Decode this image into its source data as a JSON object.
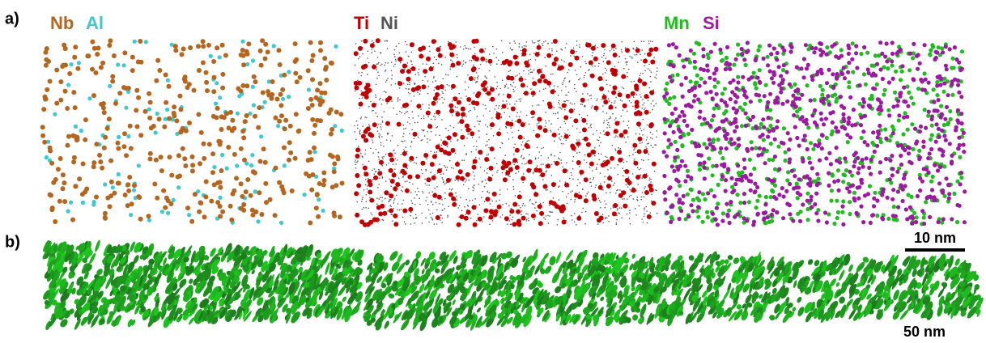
{
  "panel_a": {
    "label": "a)",
    "maps": [
      {
        "elements": [
          "Nb",
          "Al"
        ]
      },
      {
        "elements": [
          "Ti",
          "Ni"
        ]
      },
      {
        "elements": [
          "Mn",
          "Si"
        ]
      }
    ],
    "scale_bar": "10 nm"
  },
  "panel_b": {
    "label": "b)",
    "scale_bar": "50 nm"
  }
}
